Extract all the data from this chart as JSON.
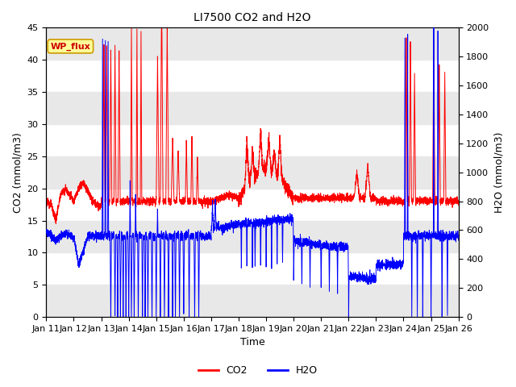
{
  "title": "LI7500 CO2 and H2O",
  "xlabel": "Time",
  "ylabel_left": "CO2 (mmol/m3)",
  "ylabel_right": "H2O (mmol/m3)",
  "ylim_left": [
    0,
    45
  ],
  "ylim_right": [
    0,
    2000
  ],
  "yticks_left": [
    0,
    5,
    10,
    15,
    20,
    25,
    30,
    35,
    40,
    45
  ],
  "yticks_right": [
    0,
    200,
    400,
    600,
    800,
    1000,
    1200,
    1400,
    1600,
    1800,
    2000
  ],
  "co2_color": "#ff0000",
  "h2o_color": "#0000ff",
  "legend_label_co2": "CO2",
  "legend_label_h2o": "H2O",
  "annotation_text": "WP_flux",
  "annotation_box_facecolor": "#ffff99",
  "annotation_box_edgecolor": "#cc9900",
  "background_color": "#ffffff",
  "band_color": "#e8e8e8",
  "n_days": 15,
  "day_start": 11,
  "title_fontsize": 10,
  "axis_fontsize": 9,
  "tick_fontsize": 8,
  "legend_fontsize": 9,
  "linewidth": 0.7
}
